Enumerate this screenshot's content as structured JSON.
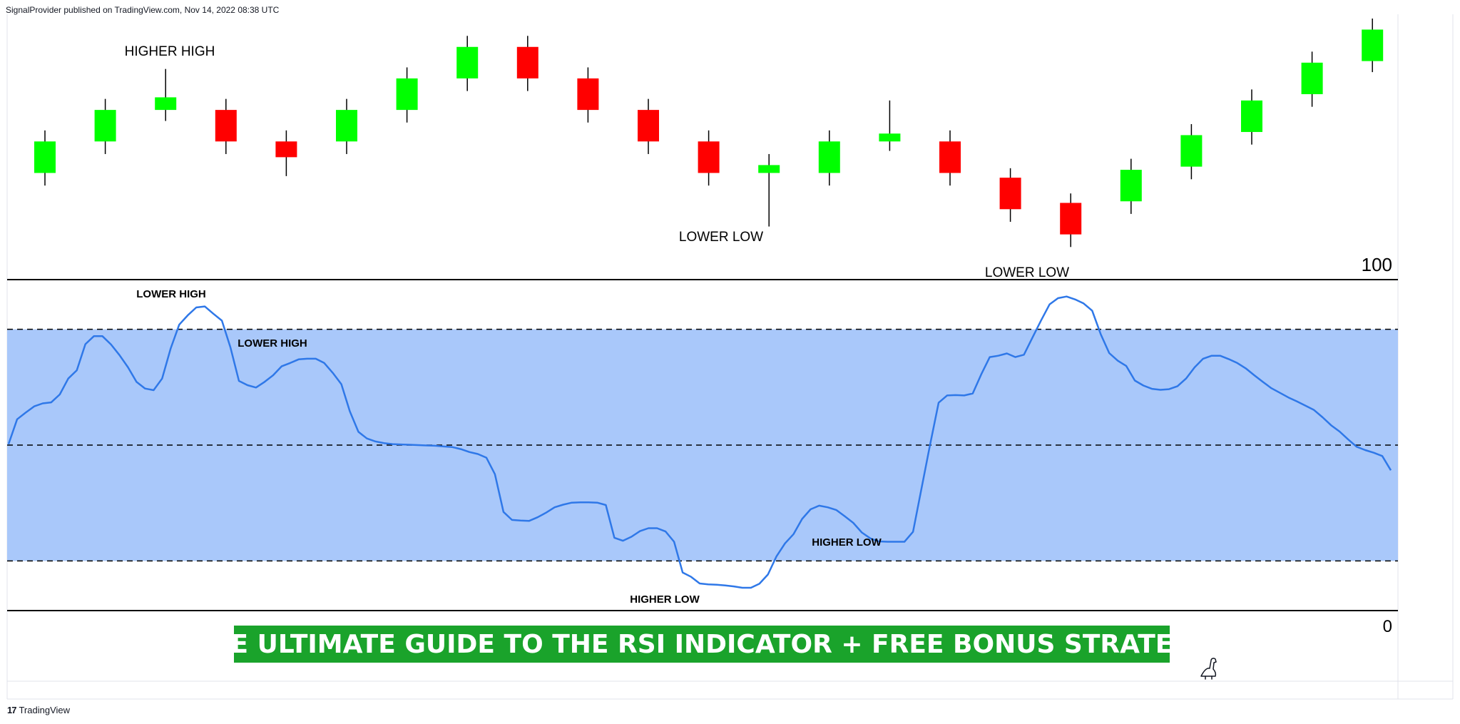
{
  "header": {
    "published_text": "SignalProvider published on TradingView.com, Nov 14, 2022 08:38 UTC"
  },
  "footer": {
    "brand_logo": "17",
    "brand_label": "TradingView"
  },
  "colors": {
    "up": "#00ff00",
    "down": "#ff0000",
    "wick": "#000000",
    "rsi_line": "#2f78e8",
    "rsi_band": "#a9c8fa",
    "banner_bg": "#1aa32b",
    "banner_text": "#ffffff"
  },
  "chart_data": [
    {
      "type": "candlestick",
      "title": "",
      "annotations": [
        "HIGHER HIGH",
        "LOWER LOW",
        "LOWER LOW"
      ],
      "candles": [
        {
          "dir": "up",
          "open": 4.0,
          "close": 5.0,
          "high": 5.35,
          "low": 3.6
        },
        {
          "dir": "up",
          "open": 5.0,
          "close": 6.0,
          "high": 6.35,
          "low": 4.6
        },
        {
          "dir": "up",
          "open": 6.0,
          "close": 6.4,
          "high": 7.3,
          "low": 5.65
        },
        {
          "dir": "down",
          "open": 6.0,
          "close": 5.0,
          "high": 6.35,
          "low": 4.6
        },
        {
          "dir": "down",
          "open": 5.0,
          "close": 4.5,
          "high": 5.35,
          "low": 3.9
        },
        {
          "dir": "up",
          "open": 5.0,
          "close": 6.0,
          "high": 6.35,
          "low": 4.6
        },
        {
          "dir": "up",
          "open": 6.0,
          "close": 7.0,
          "high": 7.35,
          "low": 5.6
        },
        {
          "dir": "up",
          "open": 7.0,
          "close": 8.0,
          "high": 8.35,
          "low": 6.6
        },
        {
          "dir": "down",
          "open": 8.0,
          "close": 7.0,
          "high": 8.35,
          "low": 6.6
        },
        {
          "dir": "down",
          "open": 7.0,
          "close": 6.0,
          "high": 7.35,
          "low": 5.6
        },
        {
          "dir": "down",
          "open": 6.0,
          "close": 5.0,
          "high": 6.35,
          "low": 4.6
        },
        {
          "dir": "down",
          "open": 5.0,
          "close": 4.0,
          "high": 5.35,
          "low": 3.6
        },
        {
          "dir": "up",
          "open": 4.0,
          "close": 4.25,
          "high": 4.6,
          "low": 2.3
        },
        {
          "dir": "up",
          "open": 4.0,
          "close": 5.0,
          "high": 5.35,
          "low": 3.6
        },
        {
          "dir": "up",
          "open": 5.0,
          "close": 5.25,
          "high": 6.3,
          "low": 4.7
        },
        {
          "dir": "down",
          "open": 5.0,
          "close": 4.0,
          "high": 5.35,
          "low": 3.6
        },
        {
          "dir": "down",
          "open": 3.85,
          "close": 2.85,
          "high": 4.15,
          "low": 2.45
        },
        {
          "dir": "down",
          "open": 3.05,
          "close": 2.05,
          "high": 3.35,
          "low": 1.65
        },
        {
          "dir": "up",
          "open": 3.1,
          "close": 4.1,
          "high": 4.45,
          "low": 2.7
        },
        {
          "dir": "up",
          "open": 4.2,
          "close": 5.2,
          "high": 5.55,
          "low": 3.8
        },
        {
          "dir": "up",
          "open": 5.3,
          "close": 6.3,
          "high": 6.65,
          "low": 4.9
        },
        {
          "dir": "up",
          "open": 6.5,
          "close": 7.5,
          "high": 7.85,
          "low": 6.1
        },
        {
          "dir": "up",
          "open": 7.55,
          "close": 8.55,
          "high": 8.9,
          "low": 7.2
        }
      ]
    },
    {
      "type": "line",
      "title": "",
      "ylim": [
        0,
        100
      ],
      "yticks": [
        "100",
        "0"
      ],
      "levels": [
        85,
        50,
        15
      ],
      "annotations": [
        "LOWER HIGH",
        "LOWER HIGH",
        "HIGHER LOW",
        "HIGHER LOW"
      ],
      "rsi": [
        50.3,
        57.8,
        59.8,
        61.7,
        62.6,
        62.9,
        65.3,
        70.1,
        72.6,
        80.5,
        82.9,
        82.9,
        80.4,
        77.2,
        73.5,
        69.1,
        67.1,
        66.6,
        70.1,
        79.2,
        86.4,
        89.2,
        91.6,
        91.9,
        89.7,
        87.6,
        79.6,
        69.4,
        68.1,
        67.4,
        69.1,
        71.1,
        73.8,
        74.8,
        75.9,
        76.1,
        76.1,
        74.8,
        71.8,
        68.4,
        60.2,
        54.0,
        52.0,
        51.1,
        50.6,
        50.3,
        50.2,
        50.1,
        50.0,
        49.9,
        49.8,
        49.6,
        49.4,
        48.8,
        47.9,
        47.3,
        46.2,
        41.2,
        29.8,
        27.4,
        27.2,
        27.1,
        28.2,
        29.6,
        31.2,
        32.0,
        32.6,
        32.7,
        32.7,
        32.6,
        31.9,
        22.0,
        21.1,
        22.3,
        24.0,
        24.9,
        24.9,
        23.9,
        20.8,
        11.5,
        10.2,
        8.2,
        7.9,
        7.8,
        7.6,
        7.3,
        6.9,
        6.9,
        8.1,
        10.9,
        16.4,
        20.3,
        23.1,
        27.7,
        30.6,
        31.7,
        31.2,
        30.4,
        28.5,
        26.5,
        23.6,
        21.8,
        20.9,
        20.8,
        20.8,
        20.8,
        23.8,
        36.9,
        50.1,
        62.8,
        65.0,
        65.1,
        65.0,
        65.6,
        71.4,
        76.6,
        77.0,
        77.7,
        76.6,
        77.3,
        82.5,
        87.6,
        92.5,
        94.4,
        94.9,
        94.0,
        92.8,
        90.6,
        83.5,
        77.8,
        75.5,
        73.9,
        69.5,
        68.0,
        67.0,
        66.7,
        66.9,
        67.8,
        70.1,
        73.5,
        76.1,
        77.0,
        77.0,
        76.0,
        74.8,
        73.2,
        71.1,
        69.1,
        67.2,
        65.8,
        64.4,
        63.2,
        61.9,
        60.6,
        58.4,
        56.0,
        54.1,
        51.7,
        49.5,
        48.5,
        47.7,
        46.7,
        42.4
      ]
    }
  ],
  "overlay": {
    "title": "THE ULTIMATE GUIDE TO THE RSI INDICATOR + FREE BONUS STRATEGY"
  }
}
